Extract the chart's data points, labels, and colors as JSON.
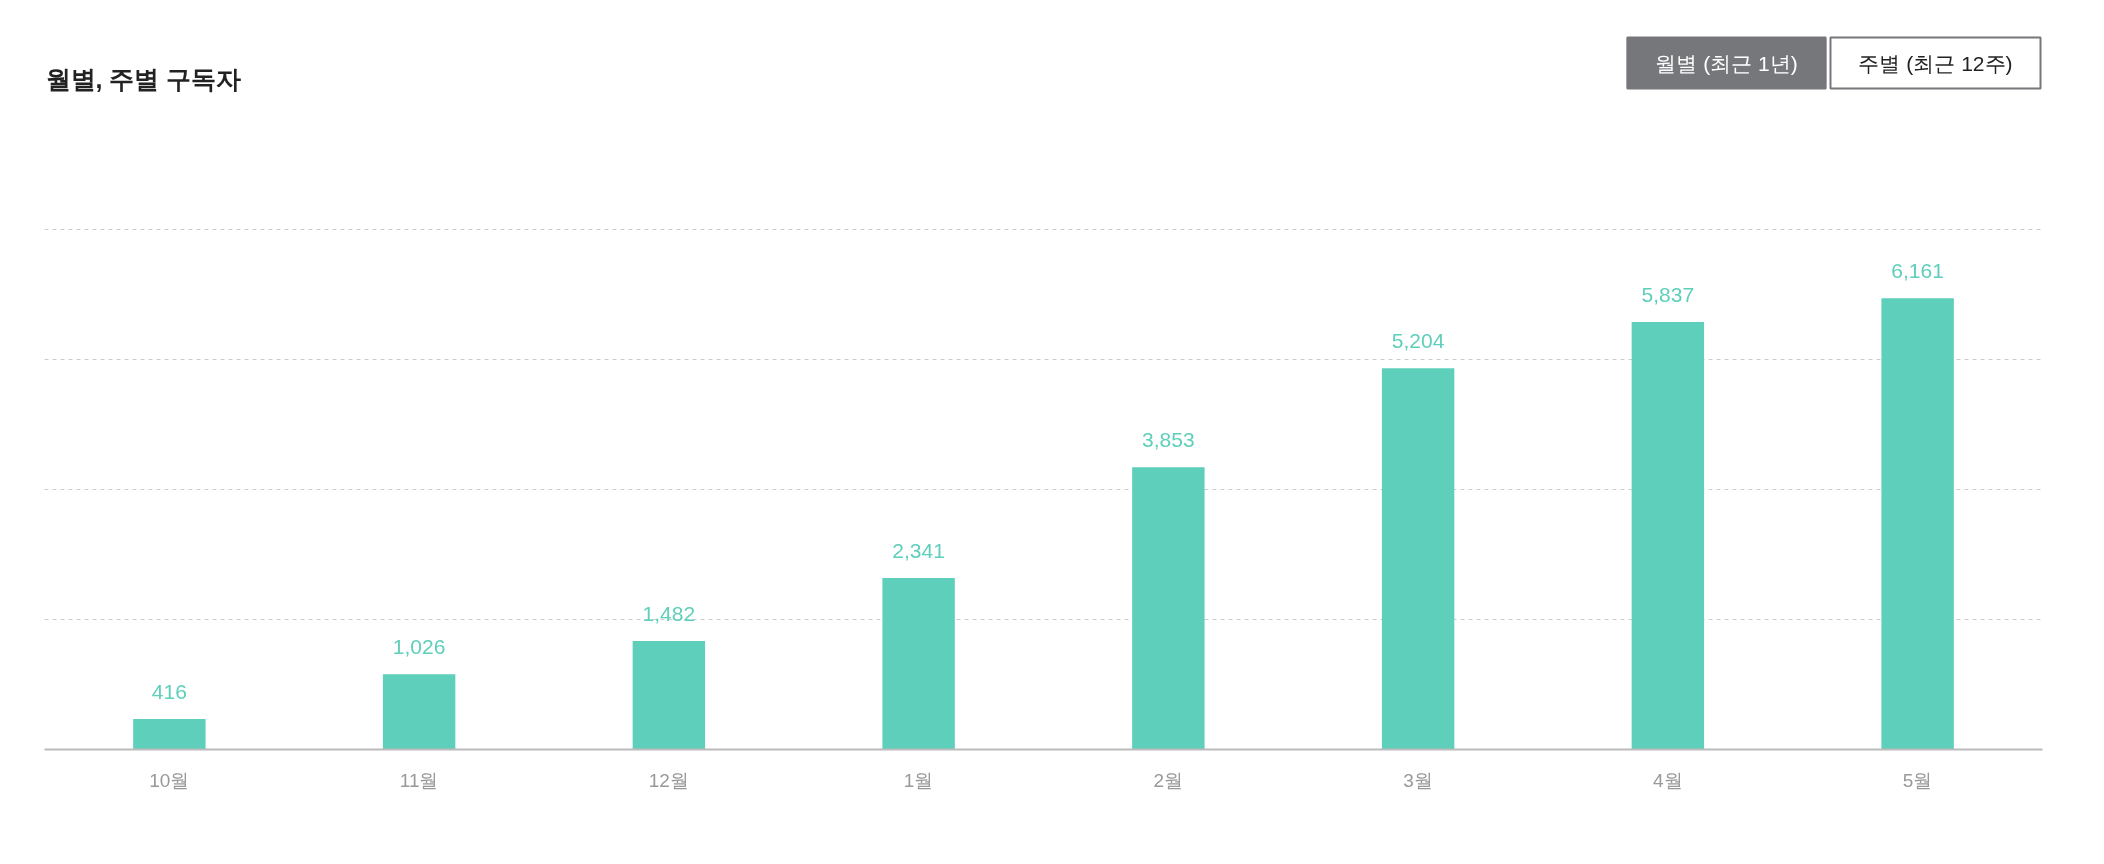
{
  "chart_data": {
    "type": "bar",
    "title": "월별, 주별 구독자",
    "categories": [
      "10월",
      "11월",
      "12월",
      "1월",
      "2월",
      "3월",
      "4월",
      "5월"
    ],
    "values": [
      416,
      1026,
      1482,
      2341,
      3853,
      5204,
      5837,
      6161
    ],
    "color": "#5ecfba",
    "value_labels": [
      "416",
      "1,026",
      "1,482",
      "2,341",
      "3,853",
      "5,204",
      "5,837",
      "6,161"
    ],
    "yticks": [
      {
        "value": 1775,
        "label": null
      },
      {
        "value": 3550,
        "label": null
      },
      {
        "value": 5325,
        "label": null
      },
      {
        "value": 7100,
        "label": null
      }
    ],
    "grid": "y",
    "annotations": [
      "월별 (최근 1년)",
      "주별 (최근 12주)"
    ]
  }
}
